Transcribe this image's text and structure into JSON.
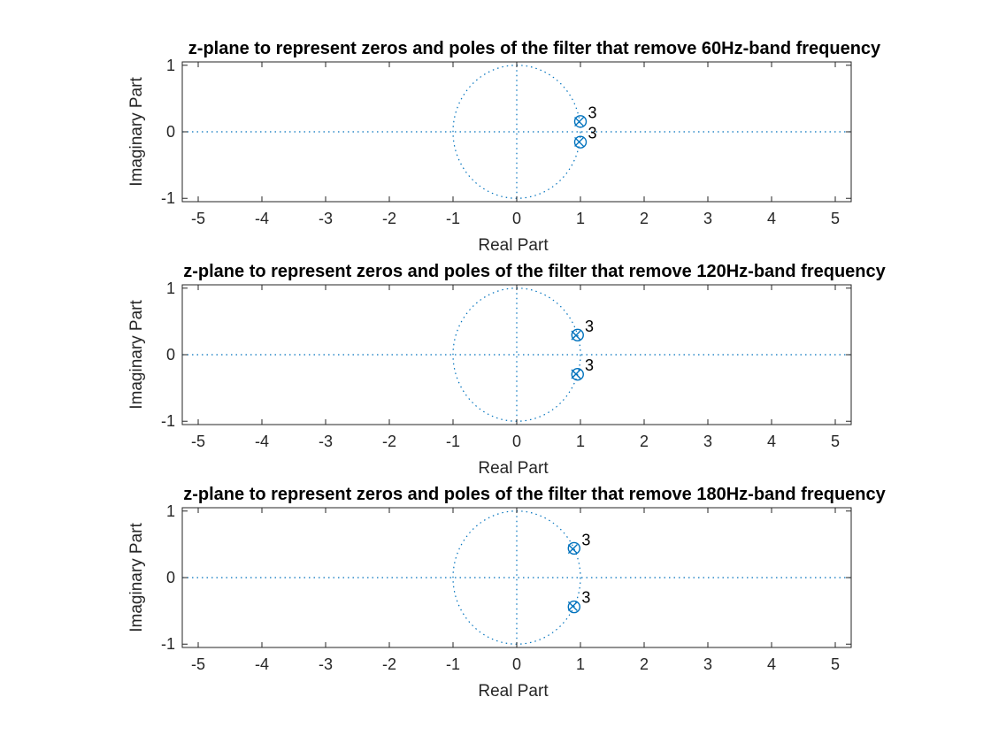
{
  "chart_data": [
    {
      "type": "scatter",
      "title": "z-plane to represent zeros and poles of the filter that remove 60Hz-band frequency",
      "xlabel": "Real Part",
      "ylabel": "Imaginary Part",
      "xlim": [
        -5.25,
        5.25
      ],
      "ylim": [
        -1.05,
        1.05
      ],
      "xticks": [
        -5,
        -4,
        -3,
        -2,
        -1,
        0,
        1,
        2,
        3,
        4,
        5
      ],
      "xtick_labels": [
        "-5",
        "-4",
        "-3",
        "-2",
        "-1",
        "0",
        "1",
        "2",
        "3",
        "4",
        "5"
      ],
      "yticks": [
        -1,
        0,
        1
      ],
      "ytick_labels": [
        "-1",
        "0",
        "1"
      ],
      "unit_circle": true,
      "grid": false,
      "color": "#0072BD",
      "zeros": [
        {
          "x": 1.0,
          "y": 0.155,
          "multiplicity": "3"
        },
        {
          "x": 1.0,
          "y": -0.155,
          "multiplicity": "3"
        }
      ],
      "poles": [
        {
          "x": 0.98,
          "y": 0.152,
          "multiplicity": "3"
        },
        {
          "x": 0.98,
          "y": -0.152,
          "multiplicity": "3"
        }
      ]
    },
    {
      "type": "scatter",
      "title": "z-plane to represent zeros and poles of the filter that remove 120Hz-band frequency",
      "xlabel": "Real Part",
      "ylabel": "Imaginary Part",
      "xlim": [
        -5.25,
        5.25
      ],
      "ylim": [
        -1.05,
        1.05
      ],
      "xticks": [
        -5,
        -4,
        -3,
        -2,
        -1,
        0,
        1,
        2,
        3,
        4,
        5
      ],
      "xtick_labels": [
        "-5",
        "-4",
        "-3",
        "-2",
        "-1",
        "0",
        "1",
        "2",
        "3",
        "4",
        "5"
      ],
      "yticks": [
        -1,
        0,
        1
      ],
      "ytick_labels": [
        "-1",
        "0",
        "1"
      ],
      "unit_circle": true,
      "grid": false,
      "color": "#0072BD",
      "zeros": [
        {
          "x": 0.955,
          "y": 0.295,
          "multiplicity": "3"
        },
        {
          "x": 0.955,
          "y": -0.295,
          "multiplicity": "3"
        }
      ],
      "poles": [
        {
          "x": 0.93,
          "y": 0.29,
          "multiplicity": "3"
        },
        {
          "x": 0.93,
          "y": -0.29,
          "multiplicity": "3"
        }
      ]
    },
    {
      "type": "scatter",
      "title": "z-plane to represent zeros and poles of the filter that remove 180Hz-band frequency",
      "xlabel": "Real Part",
      "ylabel": "Imaginary Part",
      "xlim": [
        -5.25,
        5.25
      ],
      "ylim": [
        -1.05,
        1.05
      ],
      "xticks": [
        -5,
        -4,
        -3,
        -2,
        -1,
        0,
        1,
        2,
        3,
        4,
        5
      ],
      "xtick_labels": [
        "-5",
        "-4",
        "-3",
        "-2",
        "-1",
        "0",
        "1",
        "2",
        "3",
        "4",
        "5"
      ],
      "yticks": [
        -1,
        0,
        1
      ],
      "ytick_labels": [
        "-1",
        "0",
        "1"
      ],
      "unit_circle": true,
      "grid": false,
      "color": "#0072BD",
      "zeros": [
        {
          "x": 0.9,
          "y": 0.44,
          "multiplicity": "3"
        },
        {
          "x": 0.9,
          "y": -0.44,
          "multiplicity": "3"
        }
      ],
      "poles": [
        {
          "x": 0.88,
          "y": 0.43,
          "multiplicity": "3"
        },
        {
          "x": 0.88,
          "y": -0.43,
          "multiplicity": "3"
        }
      ]
    }
  ]
}
